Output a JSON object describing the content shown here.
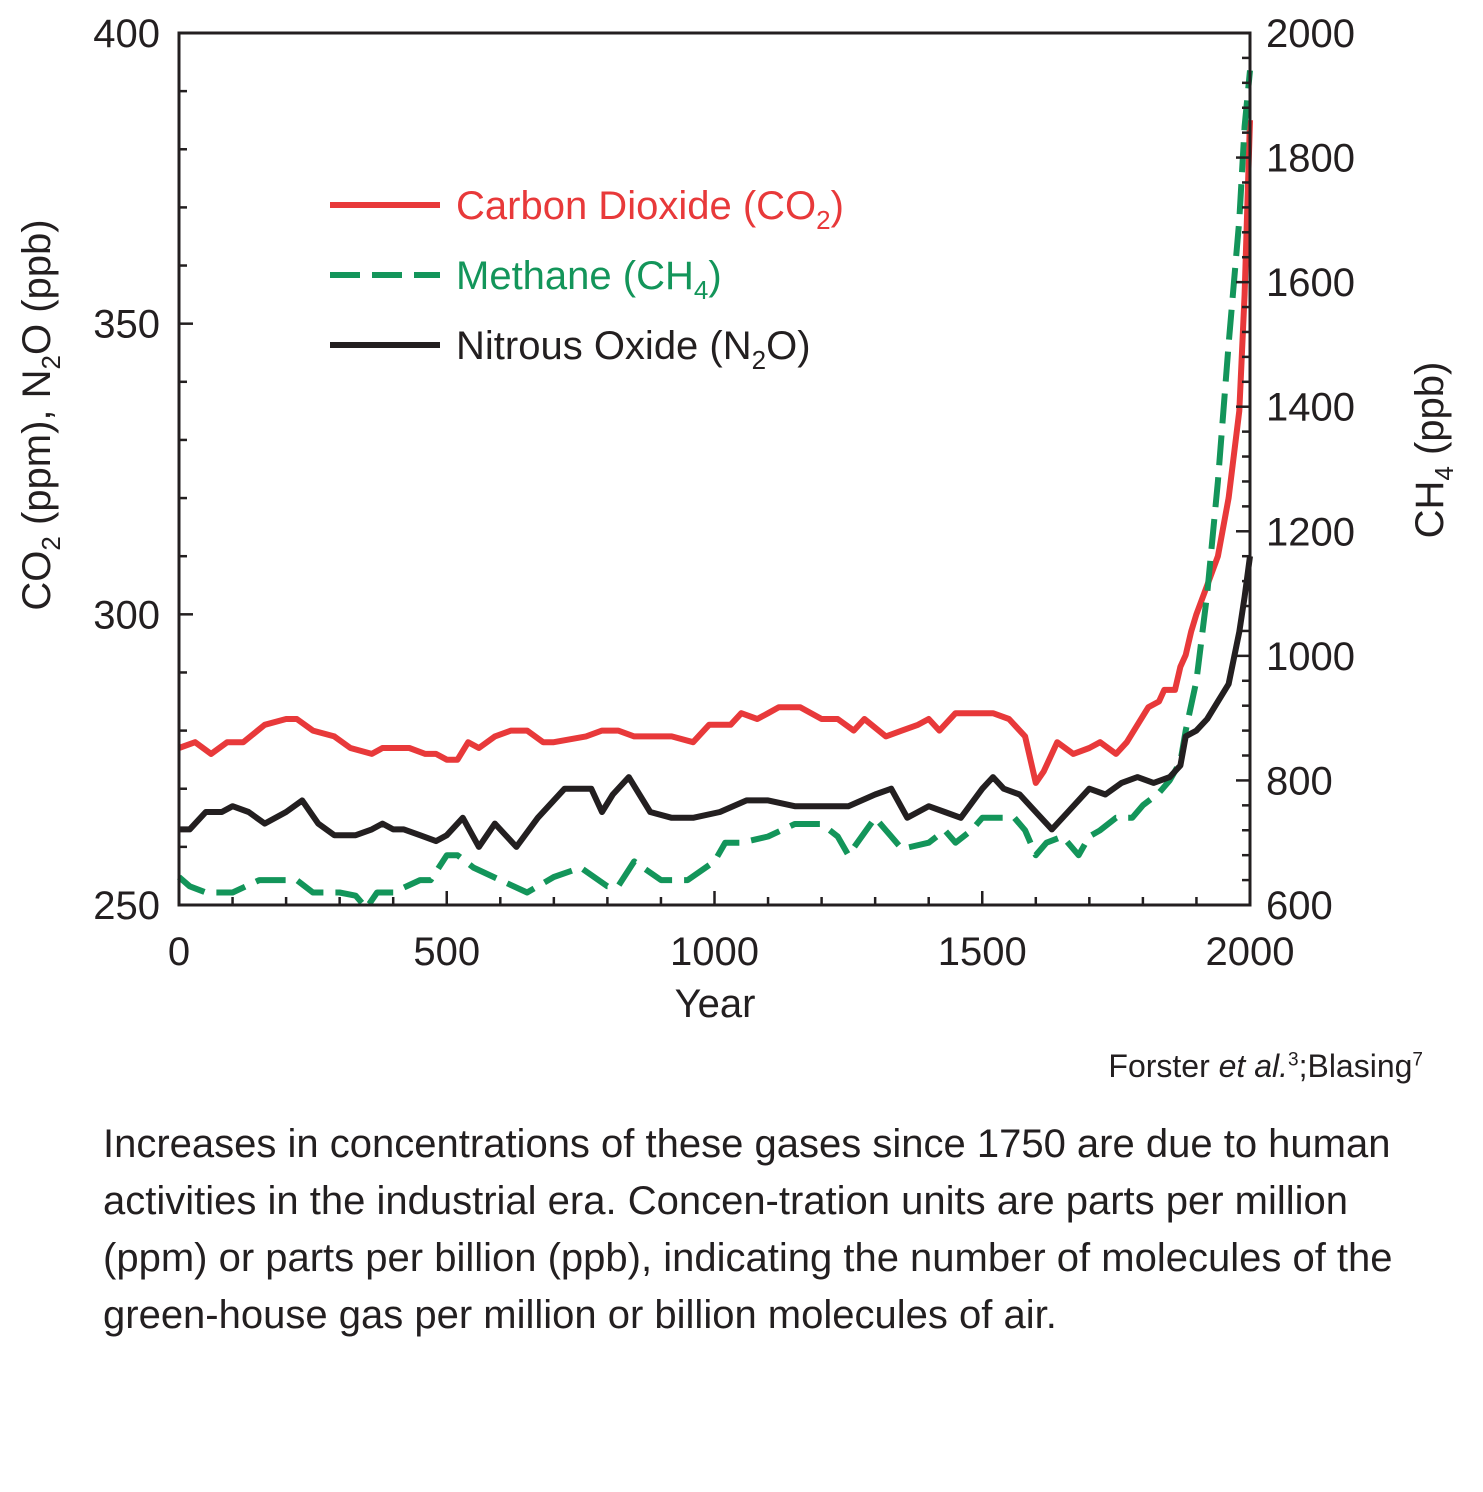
{
  "chart_data": {
    "type": "line",
    "xlabel": "Year",
    "ylabel_left": {
      "base": "CO",
      "sub1": "2",
      "mid": " (ppm), N",
      "sub2": "2",
      "tail": "O (ppb)"
    },
    "ylabel_right": {
      "base": "CH",
      "sub": "4",
      "tail": " (ppb)"
    },
    "xlim": [
      0,
      2000
    ],
    "ylim_left": [
      250,
      400
    ],
    "ylim_right": [
      600,
      2000
    ],
    "x_ticks": [
      "0",
      "500",
      "1000",
      "1500",
      "2000"
    ],
    "y_left_ticks": [
      "250",
      "300",
      "350",
      "400"
    ],
    "y_right_ticks": [
      "600",
      "800",
      "1000",
      "1200",
      "1400",
      "1600",
      "1800",
      "2000"
    ],
    "legend_position": "top-left",
    "series": [
      {
        "name": "Carbon Dioxide (CO2)",
        "label": {
          "text": "Carbon Dioxide (CO",
          "sub": "2",
          "tail": ")"
        },
        "axis": "left",
        "color": "#e8393a",
        "dash": "solid",
        "x": [
          0,
          30,
          60,
          90,
          120,
          160,
          200,
          220,
          250,
          290,
          320,
          360,
          380,
          400,
          430,
          460,
          480,
          500,
          520,
          540,
          560,
          590,
          620,
          650,
          680,
          700,
          760,
          790,
          820,
          850,
          880,
          920,
          960,
          990,
          1030,
          1050,
          1080,
          1100,
          1120,
          1140,
          1160,
          1200,
          1230,
          1260,
          1280,
          1320,
          1350,
          1380,
          1400,
          1420,
          1450,
          1480,
          1500,
          1520,
          1550,
          1580,
          1600,
          1615,
          1640,
          1670,
          1700,
          1720,
          1750,
          1770,
          1790,
          1810,
          1830,
          1840,
          1860,
          1870,
          1880,
          1890,
          1900,
          1920,
          1940,
          1960,
          1980,
          1990,
          2000
        ],
        "y": [
          277,
          278,
          276,
          278,
          278,
          281,
          282,
          282,
          280,
          279,
          277,
          276,
          277,
          277,
          277,
          276,
          276,
          275,
          275,
          278,
          277,
          279,
          280,
          280,
          278,
          278,
          279,
          280,
          280,
          279,
          279,
          279,
          278,
          281,
          281,
          283,
          282,
          283,
          284,
          284,
          284,
          282,
          282,
          280,
          282,
          279,
          280,
          281,
          282,
          280,
          283,
          283,
          283,
          283,
          282,
          279,
          271,
          273,
          278,
          276,
          277,
          278,
          276,
          278,
          281,
          284,
          285,
          287,
          287,
          291,
          293,
          297,
          300,
          305,
          310,
          320,
          335,
          355,
          385
        ]
      },
      {
        "name": "Methane (CH4)",
        "label": {
          "text": "Methane (CH",
          "sub": "4",
          "tail": ")"
        },
        "axis": "right",
        "color": "#13955a",
        "dash": "dashed",
        "x": [
          0,
          20,
          50,
          100,
          150,
          200,
          220,
          250,
          300,
          330,
          350,
          370,
          400,
          450,
          470,
          500,
          520,
          550,
          600,
          650,
          700,
          750,
          800,
          820,
          850,
          900,
          950,
          1000,
          1020,
          1050,
          1100,
          1150,
          1200,
          1230,
          1250,
          1300,
          1320,
          1350,
          1400,
          1430,
          1450,
          1480,
          1500,
          1530,
          1560,
          1580,
          1600,
          1620,
          1650,
          1680,
          1700,
          1720,
          1750,
          1780,
          1800,
          1830,
          1850,
          1870,
          1880,
          1900,
          1920,
          1940,
          1960,
          1980,
          1990,
          2000
        ],
        "y": [
          645,
          630,
          620,
          620,
          640,
          640,
          640,
          620,
          620,
          615,
          595,
          620,
          620,
          640,
          640,
          680,
          680,
          660,
          640,
          620,
          645,
          660,
          630,
          630,
          670,
          640,
          640,
          670,
          700,
          700,
          710,
          730,
          730,
          710,
          680,
          740,
          720,
          690,
          700,
          720,
          700,
          720,
          740,
          740,
          740,
          720,
          680,
          700,
          710,
          680,
          710,
          720,
          740,
          740,
          760,
          780,
          800,
          830,
          880,
          960,
          1100,
          1280,
          1500,
          1700,
          1850,
          1940
        ]
      },
      {
        "name": "Nitrous Oxide (N2O)",
        "label": {
          "text": "Nitrous Oxide (N",
          "sub": "2",
          "tail": "O)"
        },
        "axis": "left",
        "color": "#231f20",
        "dash": "solid",
        "x": [
          0,
          20,
          50,
          80,
          100,
          130,
          160,
          200,
          230,
          260,
          290,
          330,
          360,
          380,
          400,
          420,
          450,
          480,
          500,
          530,
          560,
          590,
          630,
          670,
          720,
          770,
          790,
          810,
          840,
          880,
          920,
          960,
          1010,
          1060,
          1100,
          1150,
          1200,
          1250,
          1300,
          1330,
          1360,
          1400,
          1430,
          1460,
          1500,
          1520,
          1540,
          1570,
          1600,
          1630,
          1660,
          1700,
          1730,
          1760,
          1790,
          1820,
          1850,
          1870,
          1880,
          1900,
          1920,
          1940,
          1960,
          1980,
          1990,
          2000
        ],
        "y": [
          263,
          263,
          266,
          266,
          267,
          266,
          264,
          266,
          268,
          264,
          262,
          262,
          263,
          264,
          263,
          263,
          262,
          261,
          262,
          265,
          260,
          264,
          260,
          265,
          270,
          270,
          266,
          269,
          272,
          266,
          265,
          265,
          266,
          268,
          268,
          267,
          267,
          267,
          269,
          270,
          265,
          267,
          266,
          265,
          270,
          272,
          270,
          269,
          266,
          263,
          266,
          270,
          269,
          271,
          272,
          271,
          272,
          274,
          279,
          280,
          282,
          285,
          288,
          297,
          303,
          310
        ]
      }
    ]
  },
  "credit": {
    "author": "Forster ",
    "etal": "et al.",
    "ref1": "3",
    "sep": ";Blasing",
    "ref2": "7"
  },
  "caption": "Increases in concentrations of these gases since 1750 are due to human activities in the industrial era. Concen-tration units are parts per million (ppm) or parts per billion (ppb), indicating the number of molecules of the green-house gas per million or billion molecules of air."
}
